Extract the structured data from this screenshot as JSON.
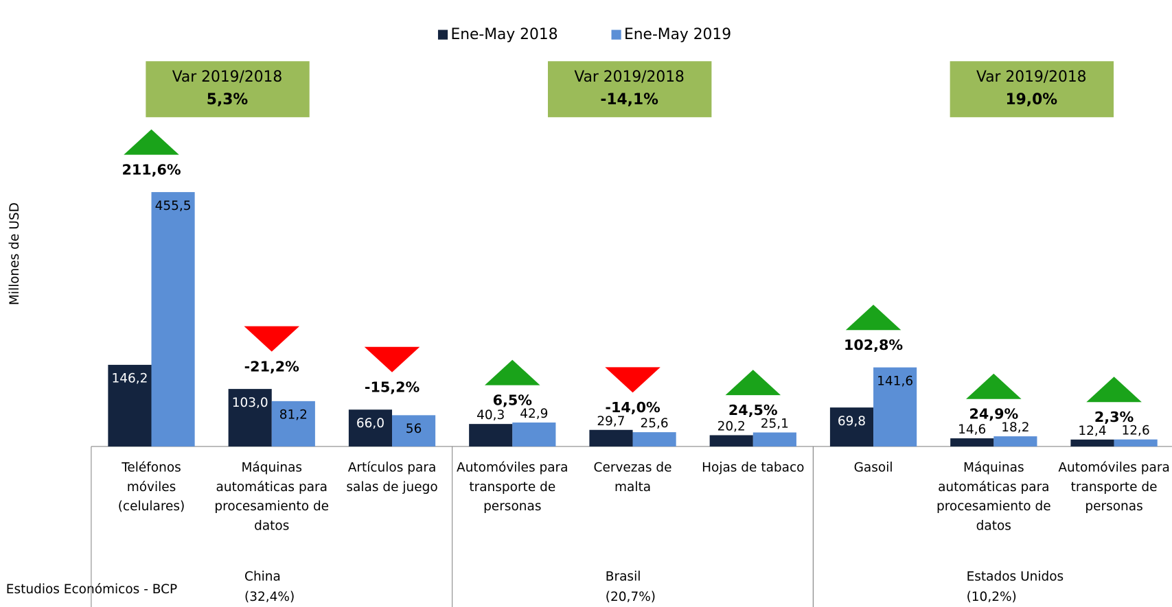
{
  "chart_data": {
    "type": "bar",
    "y_axis_label": "Millones de USD",
    "footer": "Estudios Económicos - BCP",
    "categories": [
      "Teléfonos móviles (celulares)",
      "Máquinas automáticas para procesamiento de datos",
      "Artículos para salas de juego",
      "Automóviles para transporte de personas",
      "Cervezas de malta",
      "Hojas de tabaco",
      "Gasoil",
      "Máquinas automáticas para procesamiento de datos",
      "Automóviles para transporte de personas"
    ],
    "series": [
      {
        "name": "Ene-May 2018",
        "color": "#14243f",
        "values": [
          146.2,
          103.0,
          66.0,
          40.3,
          29.7,
          20.2,
          69.8,
          14.6,
          12.4
        ],
        "value_labels": [
          "146,2",
          "103,0",
          "66,0",
          "40,3",
          "29,7",
          "20,2",
          "69,8",
          "14,6",
          "12,4"
        ]
      },
      {
        "name": "Ene-May 2019",
        "color": "#5b8fd6",
        "values": [
          455.5,
          81.2,
          56,
          42.9,
          25.6,
          25.1,
          141.6,
          18.2,
          12.6
        ],
        "value_labels": [
          "455,5",
          "81,2",
          "56",
          "42,9",
          "25,6",
          "25,1",
          "141,6",
          "18,2",
          "12,6"
        ]
      }
    ],
    "changes": {
      "values": [
        211.6,
        -21.2,
        -15.2,
        6.5,
        -14.0,
        24.5,
        102.8,
        24.9,
        2.3
      ],
      "value_labels": [
        "211,6%",
        "-21,2%",
        "-15,2%",
        "6,5%",
        "-14,0%",
        "24,5%",
        "102,8%",
        "24,9%",
        "2,3%"
      ],
      "up_color": "#1aa31a",
      "down_color": "#ff0000"
    },
    "groups": [
      {
        "name": "China",
        "share": "(32,4%)",
        "size": 3,
        "var_title": "Var 2019/2018",
        "var": {
          "value": 5.3,
          "label": "5,3%"
        }
      },
      {
        "name": "Brasil",
        "share": "(20,7%)",
        "size": 3,
        "var_title": "Var 2019/2018",
        "var": {
          "value": -14.1,
          "label": "-14,1%"
        }
      },
      {
        "name": "Estados Unidos",
        "share": "(10,2%)",
        "size": 3,
        "var_title": "Var 2019/2018",
        "var": {
          "value": 19.0,
          "label": "19,0%"
        }
      }
    ],
    "box_color": "#9bbb59",
    "ylim": [
      0,
      500
    ]
  }
}
